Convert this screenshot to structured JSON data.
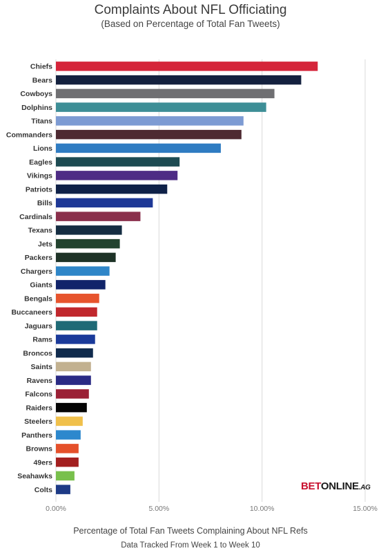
{
  "chart_data": {
    "type": "bar",
    "orientation": "horizontal",
    "title": "Complaints About NFL Officiating",
    "subtitle": "(Based on Percentage of Total Fan Tweets)",
    "xlabel": "Percentage of Total Fan Tweets Complaining About NFL Refs",
    "note": "Data Tracked From Week 1 to Week 10",
    "xlim": [
      0,
      15
    ],
    "x_ticks": [
      {
        "value": 0,
        "label": "0.00%"
      },
      {
        "value": 5,
        "label": "5.00%"
      },
      {
        "value": 10,
        "label": "10.00%"
      },
      {
        "value": 15,
        "label": "15.00%"
      }
    ],
    "grid": true,
    "categories": [
      "Chiefs",
      "Bears",
      "Cowboys",
      "Dolphins",
      "Titans",
      "Commanders",
      "Lions",
      "Eagles",
      "Vikings",
      "Patriots",
      "Bills",
      "Cardinals",
      "Texans",
      "Jets",
      "Packers",
      "Chargers",
      "Giants",
      "Bengals",
      "Buccaneers",
      "Jaguars",
      "Rams",
      "Broncos",
      "Saints",
      "Ravens",
      "Falcons",
      "Raiders",
      "Steelers",
      "Panthers",
      "Browns",
      "49ers",
      "Seahawks",
      "Colts"
    ],
    "values": [
      12.7,
      11.9,
      10.6,
      10.2,
      9.1,
      9.0,
      8.0,
      6.0,
      5.9,
      5.4,
      4.7,
      4.1,
      3.2,
      3.1,
      2.9,
      2.6,
      2.4,
      2.1,
      2.0,
      2.0,
      1.9,
      1.8,
      1.7,
      1.7,
      1.6,
      1.5,
      1.3,
      1.2,
      1.1,
      1.1,
      0.9,
      0.7
    ],
    "colors": [
      "#d5253a",
      "#14213f",
      "#6f6f72",
      "#3d8e96",
      "#7d9bd3",
      "#4e2a32",
      "#2f7cc2",
      "#1d4b52",
      "#4e2c85",
      "#0f2148",
      "#1e3896",
      "#8a2f4b",
      "#152d42",
      "#23432f",
      "#1e3327",
      "#2f86c8",
      "#11246a",
      "#e7542d",
      "#c1282d",
      "#1f6a76",
      "#1a3a9a",
      "#102b4d",
      "#c2b190",
      "#2a2a84",
      "#9b2136",
      "#050505",
      "#f0c04b",
      "#2d88cd",
      "#e5502a",
      "#a31f1f",
      "#78c04c",
      "#1d3a86"
    ],
    "brand": {
      "part1": "BET",
      "part2": "ONLINE",
      "part3": ".AG"
    }
  }
}
